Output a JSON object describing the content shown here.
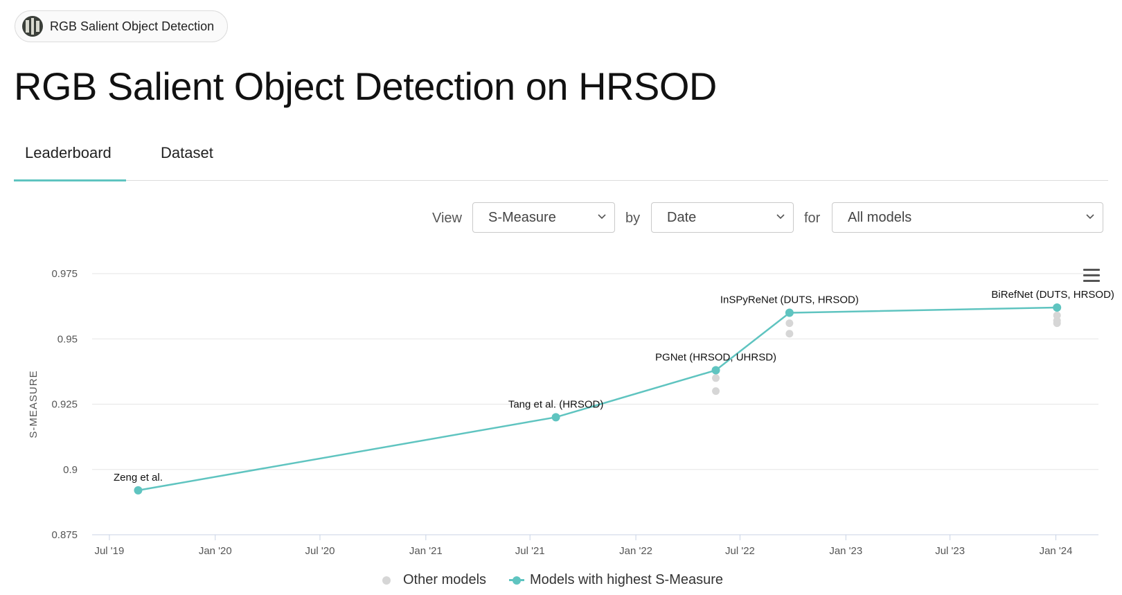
{
  "chip": {
    "label": "RGB Salient Object Detection",
    "icon": "dataset-thumbnail-icon"
  },
  "page": {
    "title": "RGB Salient Object Detection on HRSOD"
  },
  "tabs": [
    {
      "label": "Leaderboard",
      "active": true
    },
    {
      "label": "Dataset",
      "active": false
    }
  ],
  "filters": {
    "view_label": "View",
    "view_value": "S-Measure",
    "by_label": "by",
    "by_value": "Date",
    "for_label": "for",
    "for_value": "All models"
  },
  "legend": {
    "other": "Other models",
    "best": "Models with highest S-Measure"
  },
  "colors": {
    "accent": "#5fc4c0",
    "other": "#d6d6d6",
    "grid": "#e6e6e6"
  },
  "chart_data": {
    "type": "line",
    "ylabel": "S-MEASURE",
    "xlabel": "",
    "ylim": [
      0.875,
      0.975
    ],
    "yticks": [
      "0.875",
      "0.9",
      "0.925",
      "0.95",
      "0.975"
    ],
    "xlim": [
      "2019-06-01",
      "2024-03-15"
    ],
    "xticks": [
      {
        "date": "2019-07-01",
        "label": "Jul '19"
      },
      {
        "date": "2020-01-01",
        "label": "Jan '20"
      },
      {
        "date": "2020-07-01",
        "label": "Jul '20"
      },
      {
        "date": "2021-01-01",
        "label": "Jan '21"
      },
      {
        "date": "2021-07-01",
        "label": "Jul '21"
      },
      {
        "date": "2022-01-01",
        "label": "Jan '22"
      },
      {
        "date": "2022-07-01",
        "label": "Jul '22"
      },
      {
        "date": "2023-01-01",
        "label": "Jan '23"
      },
      {
        "date": "2023-07-01",
        "label": "Jul '23"
      },
      {
        "date": "2024-01-01",
        "label": "Jan '24"
      }
    ],
    "grid": true,
    "legend_position": "bottom",
    "series": [
      {
        "name": "Models with highest S-Measure",
        "points": [
          {
            "x": "2019-08-20",
            "y": 0.892,
            "label": "Zeng et al."
          },
          {
            "x": "2021-08-15",
            "y": 0.92,
            "label": "Tang et al. (HRSOD)"
          },
          {
            "x": "2022-05-20",
            "y": 0.938,
            "label": "PGNet (HRSOD, UHRSD)"
          },
          {
            "x": "2022-09-25",
            "y": 0.96,
            "label": "InSPyReNet (DUTS, HRSOD)"
          },
          {
            "x": "2024-01-03",
            "y": 0.962,
            "label": "BiRefNet (DUTS, HRSOD)"
          }
        ]
      },
      {
        "name": "Other models",
        "points": [
          {
            "x": "2022-05-20",
            "y": 0.935
          },
          {
            "x": "2022-05-20",
            "y": 0.93
          },
          {
            "x": "2022-09-25",
            "y": 0.956
          },
          {
            "x": "2022-09-25",
            "y": 0.952
          },
          {
            "x": "2024-01-03",
            "y": 0.959
          },
          {
            "x": "2024-01-03",
            "y": 0.957
          },
          {
            "x": "2024-01-03",
            "y": 0.956
          }
        ]
      }
    ]
  }
}
